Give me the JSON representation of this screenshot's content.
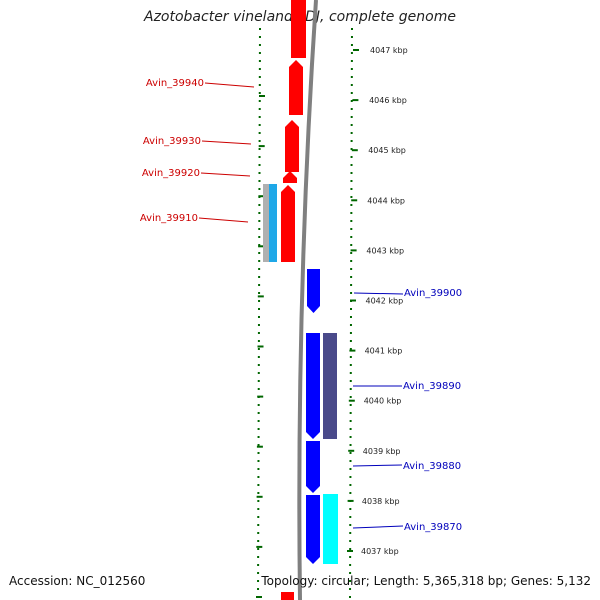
{
  "title": "Azotobacter vinelandii DJ, complete genome",
  "accession": "Accession: NC_012560",
  "topology": "Topology: circular; Length: 5,365,318 bp; Genes: 5,132",
  "colors": {
    "forward_label": "#cc0000",
    "reverse_label": "#0000bb",
    "forward_cds": "#ff0000",
    "reverse_cds": "#0000ff",
    "backbone": "#808080",
    "dots": "#006600",
    "grey_feature": "#b0b0b0",
    "light_blue_feature": "#1ea8e8",
    "dark_slate_feature": "#4a4a8a",
    "cyan_feature": "#00ffff"
  },
  "scale": {
    "unit": "kbp",
    "ticks": [
      "4047 kbp",
      "4046 kbp",
      "4045 kbp",
      "4044 kbp",
      "4043 kbp",
      "4042 kbp",
      "4041 kbp",
      "4040 kbp",
      "4039 kbp",
      "4038 kbp",
      "4037 kbp"
    ]
  },
  "gene_labels": {
    "forward": [
      "Avin_39940",
      "Avin_39930",
      "Avin_39920",
      "Avin_39910"
    ],
    "reverse": [
      "Avin_39900",
      "Avin_39890",
      "Avin_39880",
      "Avin_39870"
    ]
  }
}
